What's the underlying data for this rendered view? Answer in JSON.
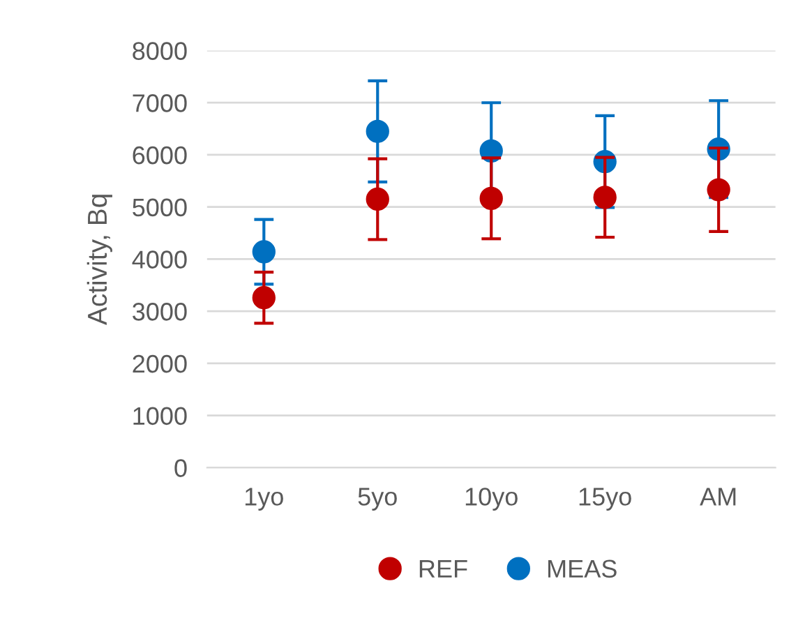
{
  "chart_data": {
    "type": "scatter",
    "ylabel": "Activity, Bq",
    "categories": [
      "1yo",
      "5yo",
      "10yo",
      "15yo",
      "AM"
    ],
    "series": [
      {
        "name": "REF",
        "color": "#c00000",
        "values": [
          3260,
          5150,
          5165,
          5185,
          5330
        ],
        "errors": [
          490,
          775,
          775,
          765,
          800
        ]
      },
      {
        "name": "MEAS",
        "color": "#0070c0",
        "values": [
          4140,
          6450,
          6075,
          5870,
          6110
        ],
        "errors": [
          620,
          970,
          925,
          880,
          930
        ]
      }
    ],
    "ylim": [
      0,
      8000
    ],
    "yticks": [
      0,
      1000,
      2000,
      3000,
      4000,
      5000,
      6000,
      7000,
      8000
    ],
    "grid": "y",
    "legend": "bottom",
    "marker": "circle"
  }
}
